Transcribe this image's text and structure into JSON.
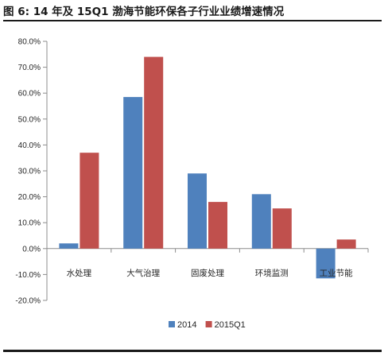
{
  "figure": {
    "title": "图 6:  14 年及 15Q1 渤海节能环保各子行业业绩增速情况"
  },
  "chart_data": {
    "type": "bar",
    "title": "",
    "xlabel": "",
    "ylabel": "",
    "categories": [
      "水处理",
      "大气治理",
      "固废处理",
      "环境监测",
      "工业节能"
    ],
    "series": [
      {
        "name": "2014",
        "color": "#4f81bd",
        "values": [
          2.0,
          58.5,
          29.0,
          21.0,
          -11.5
        ]
      },
      {
        "name": "2015Q1",
        "color": "#c0504d",
        "values": [
          37.0,
          74.0,
          18.0,
          15.5,
          3.5
        ]
      }
    ],
    "ylim": [
      -20,
      80
    ],
    "yticks": [
      -20,
      -10,
      0,
      10,
      20,
      30,
      40,
      50,
      60,
      70,
      80
    ],
    "ytick_labels": [
      "-20.0%",
      "-10.0%",
      "0.0%",
      "10.0%",
      "20.0%",
      "30.0%",
      "40.0%",
      "50.0%",
      "60.0%",
      "70.0%",
      "80.0%"
    ],
    "grid": false,
    "legend_position": "bottom-center"
  }
}
